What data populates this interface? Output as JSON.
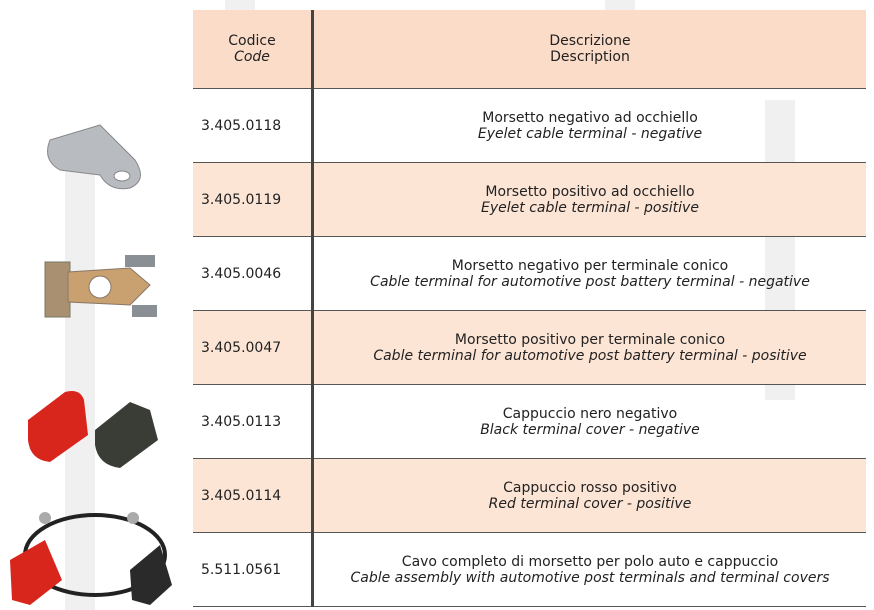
{
  "header": {
    "code_it": "Codice",
    "code_en": "Code",
    "desc_it": "Descrizione",
    "desc_en": "Description"
  },
  "rows": [
    {
      "code": "3.405.0118",
      "it": "Morsetto negativo ad occhiello",
      "en": "Eyelet cable terminal - negative"
    },
    {
      "code": "3.405.0119",
      "it": "Morsetto positivo ad occhiello",
      "en": "Eyelet cable terminal - positive"
    },
    {
      "code": "3.405.0046",
      "it": "Morsetto negativo per terminale conico",
      "en": "Cable terminal for automotive post battery terminal - negative"
    },
    {
      "code": "3.405.0047",
      "it": "Morsetto positivo per terminale conico",
      "en": "Cable terminal for automotive post battery terminal - positive"
    },
    {
      "code": "3.405.0113",
      "it": "Cappuccio nero negativo",
      "en": "Black terminal cover - negative"
    },
    {
      "code": "3.405.0114",
      "it": "Cappuccio rosso positivo",
      "en": "Red terminal cover - positive"
    },
    {
      "code": "5.511.0561",
      "it": "Cavo completo di morsetto per polo auto e cappuccio",
      "en": "Cable assembly with automotive post terminals and terminal covers"
    }
  ]
}
